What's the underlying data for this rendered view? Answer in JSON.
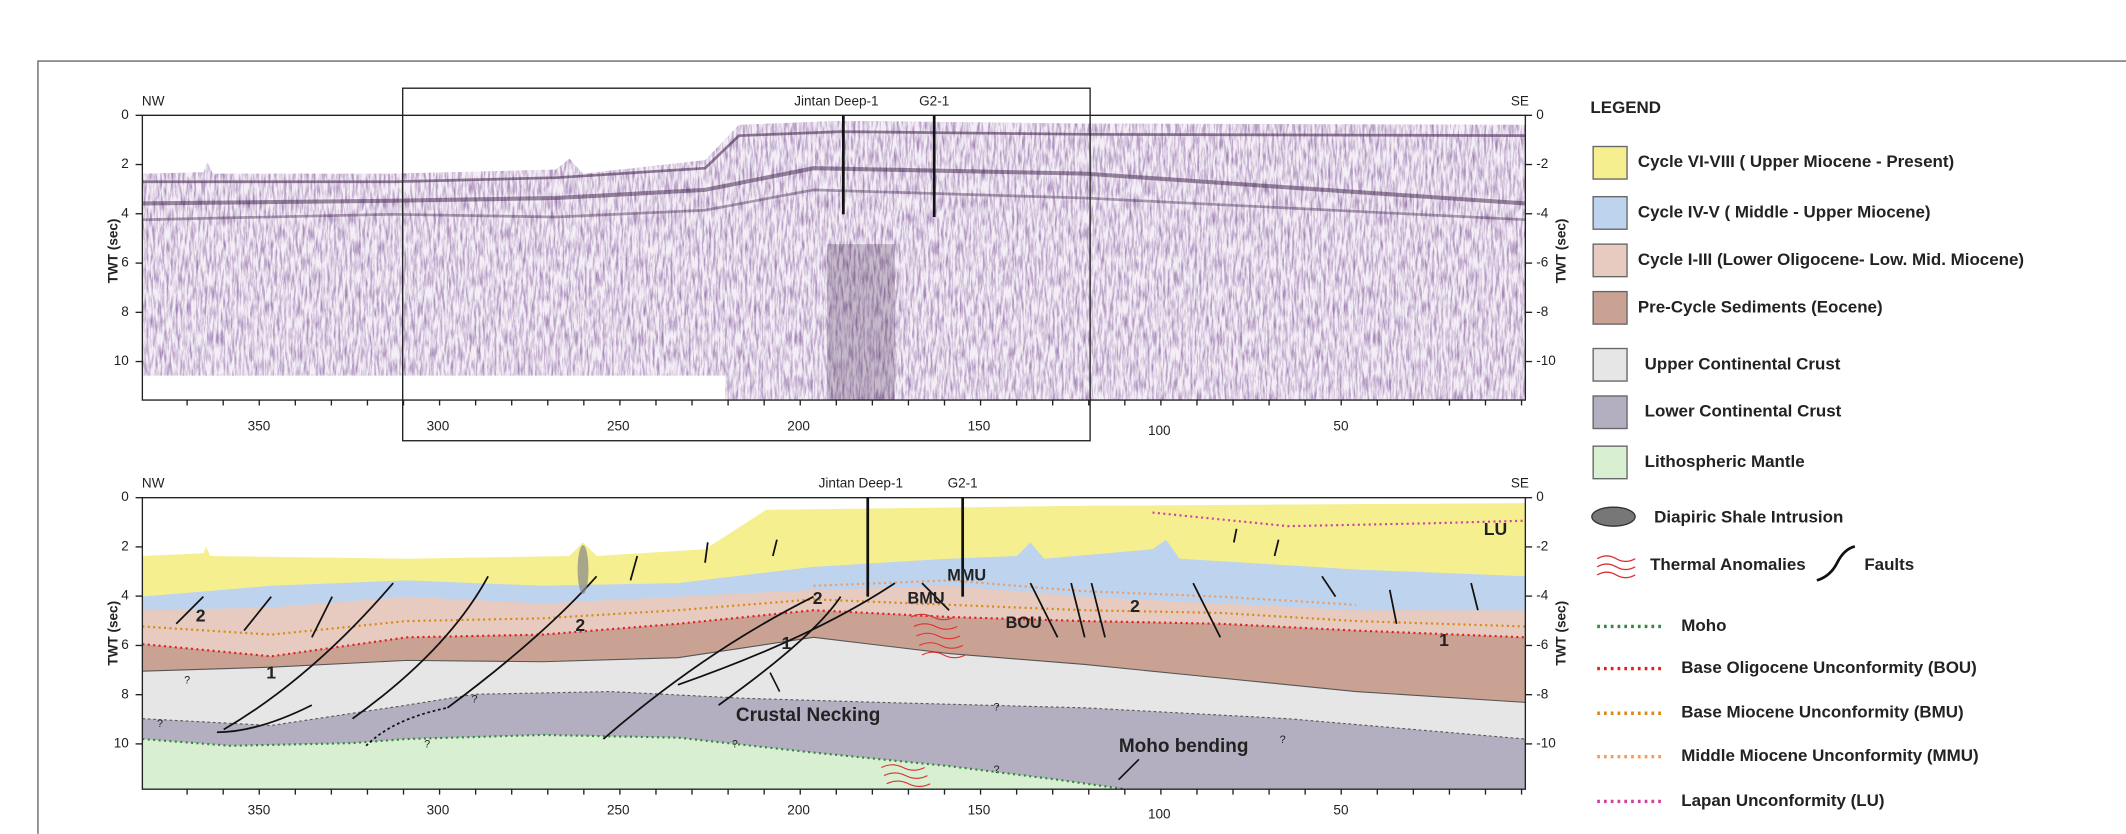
{
  "top_section": {
    "left_label": "NW",
    "right_label": "SE",
    "wells": [
      "Jintan Deep-1",
      "G2-1"
    ],
    "axis_label": "TWT (sec)",
    "left_ticks": [
      0,
      2,
      4,
      6,
      8,
      10
    ],
    "right_ticks": [
      0,
      -2,
      -4,
      -6,
      -8,
      -10
    ],
    "x_ticks": [
      350,
      300,
      250,
      200,
      150,
      100,
      50
    ]
  },
  "bottom_section": {
    "left_label": "NW",
    "right_label": "SE",
    "wells": [
      "Jintan Deep-1",
      "G2-1"
    ],
    "axis_label": "TWT (sec)",
    "left_ticks": [
      0,
      2,
      4,
      6,
      8,
      10
    ],
    "right_ticks": [
      0,
      -2,
      -4,
      -6,
      -8,
      -10
    ],
    "x_ticks": [
      350,
      300,
      250,
      200,
      150,
      100,
      50
    ],
    "annotations": [
      "2",
      "1",
      "2",
      "2",
      "1",
      "BMU",
      "MMU",
      "BOU",
      "2",
      "1",
      "LU",
      "Crustal Necking",
      "Moho bending",
      "?",
      "?",
      "?",
      "?",
      "?",
      "?",
      "?",
      "?"
    ]
  },
  "legend": {
    "title": "LEGEND",
    "patches": [
      {
        "label": "Cycle VI-VIII ( Upper Miocene - Present)",
        "color": "#f5ef8f"
      },
      {
        "label": "Cycle IV-V ( Middle - Upper Miocene)",
        "color": "#bdd3ee"
      },
      {
        "label": "Cycle I-III (Lower Oligocene- Low. Mid. Miocene)",
        "color": "#e7cbc0"
      },
      {
        "label": "Pre-Cycle Sediments (Eocene)",
        "color": "#c9a293"
      },
      {
        "label": "Upper Continental Crust",
        "color": "#e6e6e6"
      },
      {
        "label": "Lower Continental Crust",
        "color": "#b3afc0"
      },
      {
        "label": "Lithospheric Mantle",
        "color": "#d8efd1"
      }
    ],
    "symbols": [
      "Diapiric Shale Intrusion",
      "Thermal Anomalies",
      "Faults"
    ],
    "lines": [
      {
        "label": "Moho",
        "color": "#2e8b3a"
      },
      {
        "label": "Base Oligocene Unconformity (BOU)",
        "color": "#e02020"
      },
      {
        "label": "Base Miocene Unconformity (BMU)",
        "color": "#d98a10"
      },
      {
        "label": "Middle Miocene Unconformity (MMU)",
        "color": "#f59a5a"
      },
      {
        "label": "Lapan Unconformity (LU)",
        "color": "#d040a0"
      }
    ]
  }
}
